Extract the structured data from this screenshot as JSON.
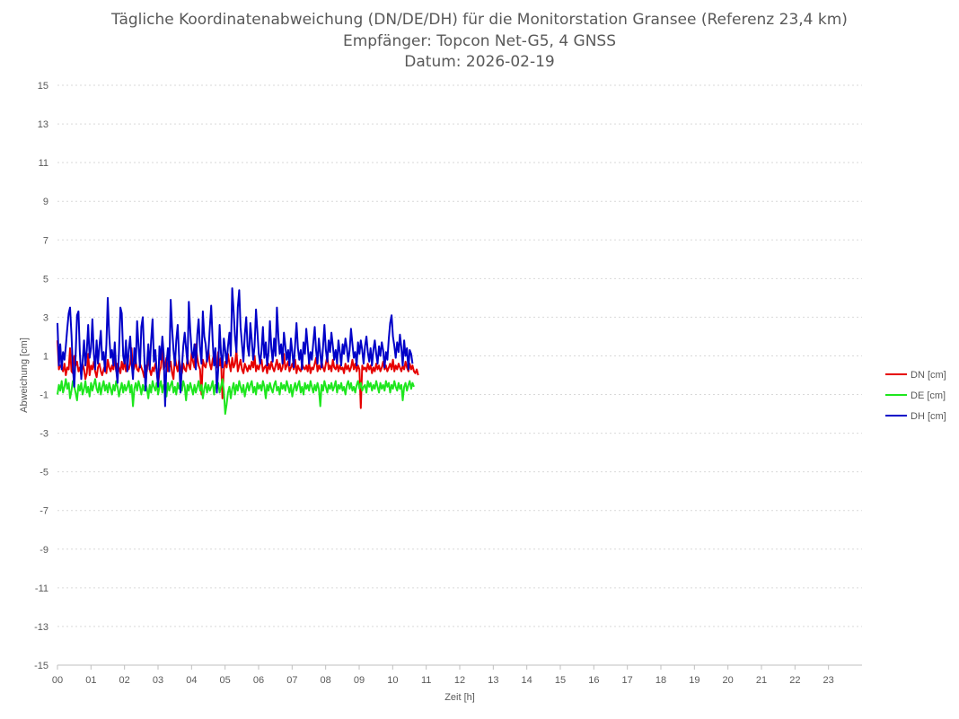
{
  "chart_data": {
    "type": "line",
    "title_lines": [
      "Tägliche Koordinatenabweichung (DN/DE/DH) für die Monitorstation Gransee (Referenz 23,4 km)",
      "Empfänger: Topcon Net-G5, 4 GNSS",
      "Datum: 2026-02-19"
    ],
    "xlabel": "Zeit [h]",
    "ylabel": "Abweichung [cm]",
    "xlim": [
      0,
      24
    ],
    "ylim": [
      -15,
      15
    ],
    "x_ticks": [
      "00",
      "01",
      "02",
      "03",
      "04",
      "05",
      "06",
      "07",
      "08",
      "09",
      "10",
      "11",
      "12",
      "13",
      "14",
      "15",
      "16",
      "17",
      "18",
      "19",
      "20",
      "21",
      "22",
      "23"
    ],
    "y_ticks": [
      15,
      13,
      11,
      9,
      7,
      5,
      3,
      1,
      -1,
      -3,
      -5,
      -7,
      -9,
      -11,
      -13,
      -15
    ],
    "grid": "horizontal-dotted",
    "legend_position": "right",
    "sample_interval_hours": 0.0417,
    "series": [
      {
        "name": "DN [cm]",
        "color": "#e60000",
        "values": [
          1.8,
          0.3,
          0.5,
          0.4,
          0.2,
          0.6,
          0.0,
          0.4,
          0.3,
          1.4,
          0.2,
          0.1,
          1.0,
          0.5,
          0.7,
          0.2,
          0.4,
          0.0,
          0.6,
          0.3,
          -0.2,
          0.1,
          1.1,
          0.0,
          0.5,
          0.3,
          0.7,
          0.2,
          -0.1,
          0.4,
          0.6,
          0.2,
          0.0,
          0.3,
          0.5,
          0.1,
          0.8,
          0.4,
          0.2,
          0.5,
          0.3,
          0.9,
          0.2,
          0.6,
          0.4,
          0.1,
          0.7,
          0.3,
          0.8,
          0.2,
          0.5,
          0.3,
          0.6,
          1.4,
          0.2,
          0.4,
          0.7,
          0.3,
          0.2,
          0.6,
          0.4,
          0.2,
          -0.1,
          0.5,
          0.2,
          1.0,
          0.3,
          0.0,
          0.4,
          0.2,
          0.6,
          0.3,
          -0.5,
          0.2,
          0.4,
          1.5,
          0.3,
          0.5,
          0.9,
          0.2,
          0.4,
          0.7,
          0.1,
          -0.2,
          1.0,
          0.5,
          0.2,
          0.8,
          0.4,
          0.1,
          0.6,
          0.3,
          0.2,
          0.9,
          0.5,
          0.3,
          1.2,
          0.7,
          0.4,
          1.6,
          0.9,
          0.5,
          0.3,
          -1.0,
          0.8,
          0.5,
          0.4,
          0.9,
          1.3,
          0.6,
          0.3,
          0.8,
          1.1,
          0.7,
          0.4,
          1.2,
          0.5,
          0.9,
          -1.2,
          0.3,
          0.7,
          0.4,
          1.1,
          0.6,
          0.2,
          0.9,
          0.4,
          0.6,
          1.3,
          0.2,
          0.5,
          0.8,
          0.3,
          0.1,
          0.6,
          0.4,
          0.2,
          0.5,
          0.3,
          0.7,
          0.4,
          1.0,
          0.2,
          0.5,
          0.3,
          0.6,
          0.8,
          0.2,
          0.4,
          0.5,
          0.1,
          0.6,
          0.3,
          0.7,
          0.4,
          0.2,
          0.5,
          0.8,
          0.3,
          0.6,
          0.2,
          0.4,
          1.1,
          0.3,
          0.5,
          0.7,
          0.2,
          0.4,
          0.6,
          0.3,
          0.8,
          0.1,
          0.5,
          0.3,
          0.2,
          0.6,
          0.4,
          0.3,
          0.5,
          0.2,
          0.7,
          0.1,
          0.4,
          0.3,
          0.6,
          0.9,
          0.2,
          0.5,
          0.3,
          0.7,
          0.4,
          0.2,
          0.6,
          1.0,
          0.3,
          0.5,
          0.2,
          0.8,
          0.4,
          0.3,
          0.6,
          0.2,
          0.5,
          0.3,
          0.4,
          0.1,
          0.6,
          0.3,
          0.5,
          0.2,
          0.4,
          0.8,
          0.3,
          0.6,
          0.2,
          0.5,
          0.3,
          -1.7,
          0.5,
          0.3,
          0.4,
          0.2,
          0.6,
          0.3,
          0.5,
          0.1,
          0.4,
          0.2,
          0.6,
          0.3,
          0.5,
          0.2,
          0.4,
          0.7,
          0.3,
          0.5,
          0.2,
          0.4,
          0.6,
          0.3,
          0.8,
          0.2,
          0.5,
          0.3,
          0.6,
          0.4,
          0.2,
          0.5,
          0.3,
          0.7,
          0.4,
          0.2,
          0.6,
          0.3,
          0.5,
          0.2,
          0.1,
          0.3,
          0.0
        ]
      },
      {
        "name": "DE [cm]",
        "color": "#1ee61e",
        "values": [
          -1.0,
          -0.5,
          -0.8,
          -0.3,
          -0.9,
          -0.6,
          -0.2,
          -0.7,
          -0.4,
          -1.2,
          -0.8,
          -0.3,
          -0.6,
          -0.9,
          -1.3,
          -0.5,
          -0.8,
          -0.4,
          -1.0,
          -0.7,
          -0.3,
          -0.9,
          -0.6,
          -1.1,
          -0.4,
          -0.8,
          -0.5,
          -0.2,
          -0.7,
          -0.9,
          -0.4,
          -1.0,
          -0.6,
          -0.3,
          -0.8,
          -0.5,
          -0.9,
          -0.4,
          -0.7,
          -1.0,
          -0.5,
          -0.8,
          -0.3,
          -0.6,
          -1.1,
          -0.7,
          -0.4,
          -0.9,
          -0.5,
          -0.8,
          -0.6,
          -0.3,
          -0.9,
          -0.5,
          -1.6,
          -0.7,
          -0.4,
          -0.8,
          -0.3,
          -0.6,
          -1.0,
          -0.5,
          -0.8,
          -0.4,
          -0.7,
          -1.2,
          -0.5,
          -0.9,
          -0.3,
          -0.6,
          -0.8,
          -0.4,
          -1.0,
          -0.6,
          -0.3,
          -0.9,
          -0.5,
          -0.7,
          -1.1,
          -0.4,
          -0.8,
          -0.5,
          -0.3,
          -0.9,
          -0.6,
          -1.0,
          -0.4,
          -0.7,
          -0.5,
          -0.8,
          -0.3,
          -0.6,
          -1.3,
          -0.5,
          -0.8,
          -0.4,
          -0.7,
          -1.0,
          -0.5,
          -0.9,
          -0.6,
          -0.3,
          -0.8,
          -0.5,
          -1.2,
          -0.7,
          -0.4,
          -0.9,
          -0.5,
          -0.8,
          -0.6,
          -0.3,
          -1.0,
          -0.5,
          -0.7,
          -0.4,
          -0.9,
          -0.6,
          -0.2,
          -0.8,
          -2.0,
          -1.5,
          -0.9,
          -0.6,
          -1.2,
          -0.7,
          -0.4,
          -1.0,
          -0.5,
          -0.8,
          -0.3,
          -0.6,
          -0.9,
          -0.5,
          -1.1,
          -0.7,
          -0.4,
          -0.8,
          -0.5,
          -0.3,
          -0.9,
          -0.6,
          -1.0,
          -0.4,
          -0.7,
          -0.5,
          -0.8,
          -0.3,
          -0.6,
          -1.2,
          -0.5,
          -0.8,
          -0.4,
          -0.7,
          -0.9,
          -0.5,
          -0.3,
          -0.8,
          -0.6,
          -1.0,
          -0.4,
          -0.7,
          -0.5,
          -0.8,
          -0.3,
          -0.6,
          -0.9,
          -0.5,
          -1.1,
          -0.7,
          -0.4,
          -0.8,
          -0.5,
          -0.3,
          -0.9,
          -0.6,
          -1.0,
          -0.4,
          -0.7,
          -0.5,
          -0.8,
          -0.3,
          -0.6,
          -0.9,
          -0.5,
          -0.8,
          -0.4,
          -0.7,
          -1.6,
          -0.5,
          -0.8,
          -0.3,
          -0.6,
          -0.9,
          -0.5,
          -0.7,
          -0.4,
          -0.8,
          -0.6,
          -0.3,
          -0.9,
          -0.5,
          -0.7,
          -0.4,
          -0.8,
          -0.6,
          -1.0,
          -0.5,
          -0.3,
          -0.7,
          -0.4,
          -0.8,
          -0.6,
          -0.9,
          -0.5,
          -0.3,
          -0.7,
          -0.4,
          -0.8,
          -0.6,
          -0.5,
          -0.9,
          -0.3,
          -0.6,
          -0.4,
          -0.8,
          -0.5,
          -0.7,
          -0.3,
          -0.6,
          -0.9,
          -0.4,
          -0.7,
          -0.5,
          -0.8,
          -0.3,
          -0.6,
          -0.4,
          -0.9,
          -0.5,
          -0.7,
          -0.3,
          -0.6,
          -0.8,
          -0.4,
          -0.7,
          -0.5,
          -1.3,
          -0.6,
          -0.4,
          -0.8,
          -0.5,
          -0.3,
          -0.7,
          -0.4,
          -0.6
        ]
      },
      {
        "name": "DH [cm]",
        "color": "#0000c8",
        "values": [
          2.7,
          0.5,
          1.6,
          0.3,
          1.2,
          0.8,
          1.5,
          2.4,
          3.2,
          3.5,
          2.1,
          0.4,
          -0.6,
          1.0,
          3.1,
          3.3,
          1.2,
          -0.2,
          0.7,
          1.8,
          0.5,
          1.3,
          2.6,
          0.9,
          1.4,
          2.9,
          1.1,
          0.3,
          1.8,
          0.6,
          1.5,
          2.3,
          0.8,
          1.2,
          0.2,
          1.6,
          4.0,
          2.1,
          0.9,
          1.3,
          0.5,
          1.7,
          0.3,
          -0.4,
          1.2,
          3.5,
          3.2,
          1.0,
          0.6,
          1.8,
          0.2,
          1.3,
          2.0,
          0.7,
          -0.2,
          1.4,
          0.6,
          2.8,
          1.5,
          0.4,
          2.5,
          3.0,
          1.2,
          -0.8,
          0.5,
          1.6,
          0.3,
          1.8,
          2.9,
          0.7,
          1.3,
          0.2,
          -0.6,
          1.5,
          0.8,
          2.0,
          1.1,
          -1.6,
          0.6,
          1.4,
          0.2,
          3.9,
          2.4,
          1.3,
          0.5,
          1.8,
          2.6,
          1.0,
          -0.9,
          0.4,
          1.5,
          2.2,
          1.4,
          0.6,
          3.8,
          2.3,
          1.2,
          0.9,
          1.6,
          0.3,
          2.1,
          2.9,
          1.4,
          0.6,
          3.3,
          2.0,
          1.6,
          0.7,
          1.2,
          2.5,
          3.6,
          1.8,
          0.5,
          1.4,
          -0.9,
          0.3,
          2.6,
          1.1,
          0.4,
          1.9,
          1.3,
          0.6,
          1.5,
          2.2,
          1.0,
          4.5,
          3.3,
          2.0,
          1.2,
          3.5,
          4.4,
          2.5,
          1.6,
          0.7,
          2.1,
          3.0,
          1.5,
          1.0,
          2.7,
          1.8,
          0.8,
          1.5,
          3.4,
          2.3,
          1.1,
          0.6,
          1.3,
          2.5,
          0.9,
          1.7,
          0.5,
          1.2,
          2.8,
          1.4,
          0.7,
          1.9,
          1.0,
          3.5,
          2.0,
          1.1,
          1.6,
          0.6,
          2.2,
          1.5,
          0.8,
          1.3,
          0.5,
          1.9,
          1.2,
          0.4,
          1.6,
          2.7,
          1.4,
          0.8,
          1.3,
          0.3,
          1.7,
          1.1,
          2.4,
          1.5,
          0.6,
          1.2,
          0.8,
          1.7,
          2.5,
          1.3,
          0.6,
          1.9,
          1.1,
          0.4,
          1.5,
          2.6,
          1.3,
          0.7,
          1.8,
          1.2,
          2.2,
          1.5,
          0.8,
          1.3,
          0.6,
          1.8,
          1.2,
          0.5,
          1.6,
          1.1,
          1.9,
          1.4,
          0.7,
          1.3,
          2.4,
          1.6,
          0.9,
          1.2,
          0.5,
          1.7,
          1.1,
          1.8,
          1.3,
          0.6,
          1.5,
          2.0,
          1.2,
          0.7,
          1.4,
          0.5,
          1.3,
          1.8,
          1.1,
          0.6,
          1.5,
          1.0,
          1.7,
          1.3,
          0.4,
          1.2,
          0.8,
          1.9,
          2.7,
          3.1,
          2.0,
          1.5,
          0.9,
          1.7,
          1.2,
          2.1,
          1.4,
          0.5,
          1.8,
          1.0,
          1.4,
          0.3,
          1.3,
          1.1,
          0.6
        ]
      }
    ]
  }
}
